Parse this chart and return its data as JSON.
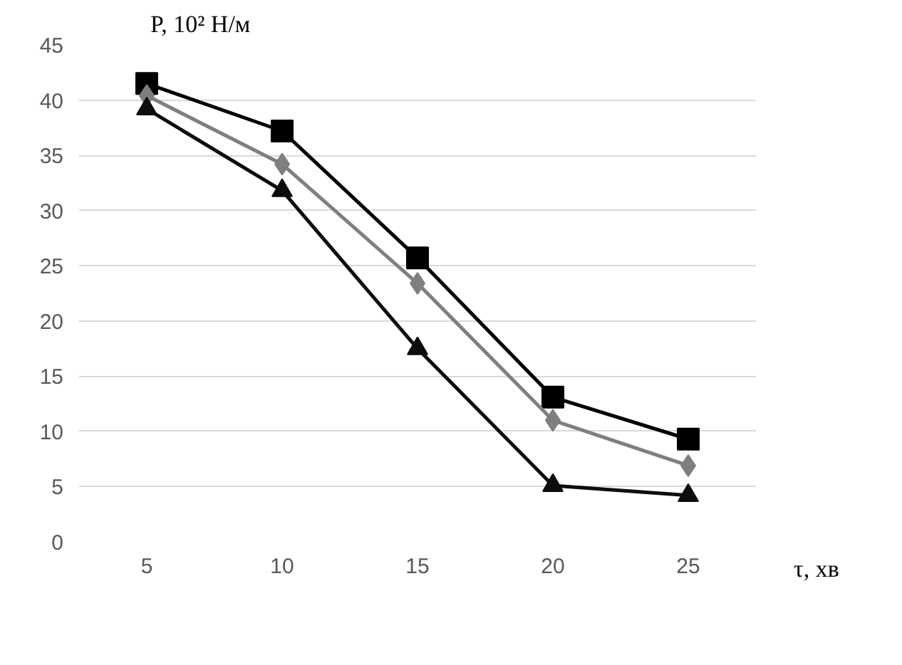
{
  "chart_data": {
    "type": "line",
    "xlabel": "τ, хв",
    "ylabel": "P, 10² Н/м",
    "x": [
      5,
      10,
      15,
      20,
      25
    ],
    "series": [
      {
        "color": "#000000",
        "marker": "square",
        "values": [
          41.5,
          37.2,
          25.7,
          13.1,
          9.3
        ]
      },
      {
        "color": "#7f7f7f",
        "marker": "diamond",
        "values": [
          40.4,
          34.2,
          23.4,
          11.0,
          6.9
        ]
      },
      {
        "color": "#0d0d0d",
        "marker": "triangle",
        "values": [
          39.2,
          31.8,
          17.5,
          5.1,
          4.2
        ]
      }
    ],
    "xlim": [
      2.5,
      27.5
    ],
    "ylim": [
      0,
      45
    ],
    "xticks": [
      5,
      10,
      15,
      20,
      25
    ],
    "yticks": [
      0,
      5,
      10,
      15,
      20,
      25,
      30,
      35,
      40,
      45
    ],
    "grid": "y"
  }
}
